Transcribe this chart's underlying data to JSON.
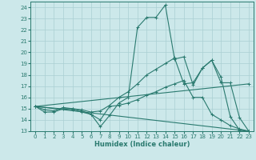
{
  "xlabel": "Humidex (Indice chaleur)",
  "xlim": [
    -0.5,
    23.5
  ],
  "ylim": [
    13,
    24.5
  ],
  "yticks": [
    13,
    14,
    15,
    16,
    17,
    18,
    19,
    20,
    21,
    22,
    23,
    24
  ],
  "xticks": [
    0,
    1,
    2,
    3,
    4,
    5,
    6,
    7,
    8,
    9,
    10,
    11,
    12,
    13,
    14,
    15,
    16,
    17,
    18,
    19,
    20,
    21,
    22,
    23
  ],
  "bg_color": "#cce8ea",
  "grid_color": "#aacfd2",
  "line_color": "#2a7a6f",
  "lines": [
    {
      "x": [
        0,
        1,
        2,
        3,
        4,
        5,
        6,
        7,
        8,
        9,
        10,
        11,
        12,
        13,
        14,
        15,
        16,
        17,
        18,
        19,
        20,
        21,
        22,
        23
      ],
      "y": [
        15.2,
        14.7,
        14.7,
        15.0,
        15.0,
        14.8,
        14.5,
        13.4,
        14.4,
        15.5,
        16.0,
        22.2,
        23.1,
        23.1,
        24.2,
        19.4,
        19.6,
        17.1,
        18.6,
        19.3,
        17.8,
        14.3,
        13.1,
        13.0
      ]
    },
    {
      "x": [
        0,
        1,
        2,
        3,
        4,
        5,
        6,
        7,
        8,
        9,
        10,
        11,
        12,
        13,
        14,
        15,
        16,
        17,
        18,
        19,
        20,
        21,
        22,
        23
      ],
      "y": [
        15.2,
        14.9,
        14.8,
        15.1,
        15.0,
        14.9,
        14.7,
        14.8,
        15.3,
        16.0,
        16.5,
        17.2,
        18.0,
        18.5,
        19.0,
        19.5,
        17.2,
        17.3,
        18.6,
        19.3,
        17.3,
        17.3,
        14.2,
        13.0
      ]
    },
    {
      "x": [
        0,
        23
      ],
      "y": [
        15.2,
        17.2
      ]
    },
    {
      "x": [
        0,
        4,
        5,
        6,
        7,
        8,
        9,
        10,
        11,
        12,
        13,
        14,
        15,
        16,
        17,
        18,
        19,
        20,
        21,
        22,
        23
      ],
      "y": [
        15.2,
        14.9,
        14.7,
        14.5,
        14.0,
        15.2,
        15.3,
        15.5,
        15.8,
        16.2,
        16.5,
        16.9,
        17.2,
        17.5,
        16.0,
        16.0,
        14.5,
        14.0,
        13.5,
        13.2,
        13.0
      ]
    },
    {
      "x": [
        0,
        23
      ],
      "y": [
        15.2,
        13.0
      ]
    }
  ]
}
